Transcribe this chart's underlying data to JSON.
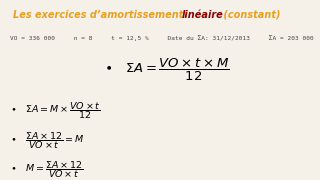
{
  "bg_color": "#f5f0e8",
  "title_part1": "Les exercices d’amortissement ",
  "title_part2": "linéaire",
  "title_part3": " (constant)",
  "title_color1": "#e8a020",
  "title_color2": "#8b0000",
  "title_color3": "#e8a020",
  "info_color": "#444444",
  "formula_color": "#000000"
}
